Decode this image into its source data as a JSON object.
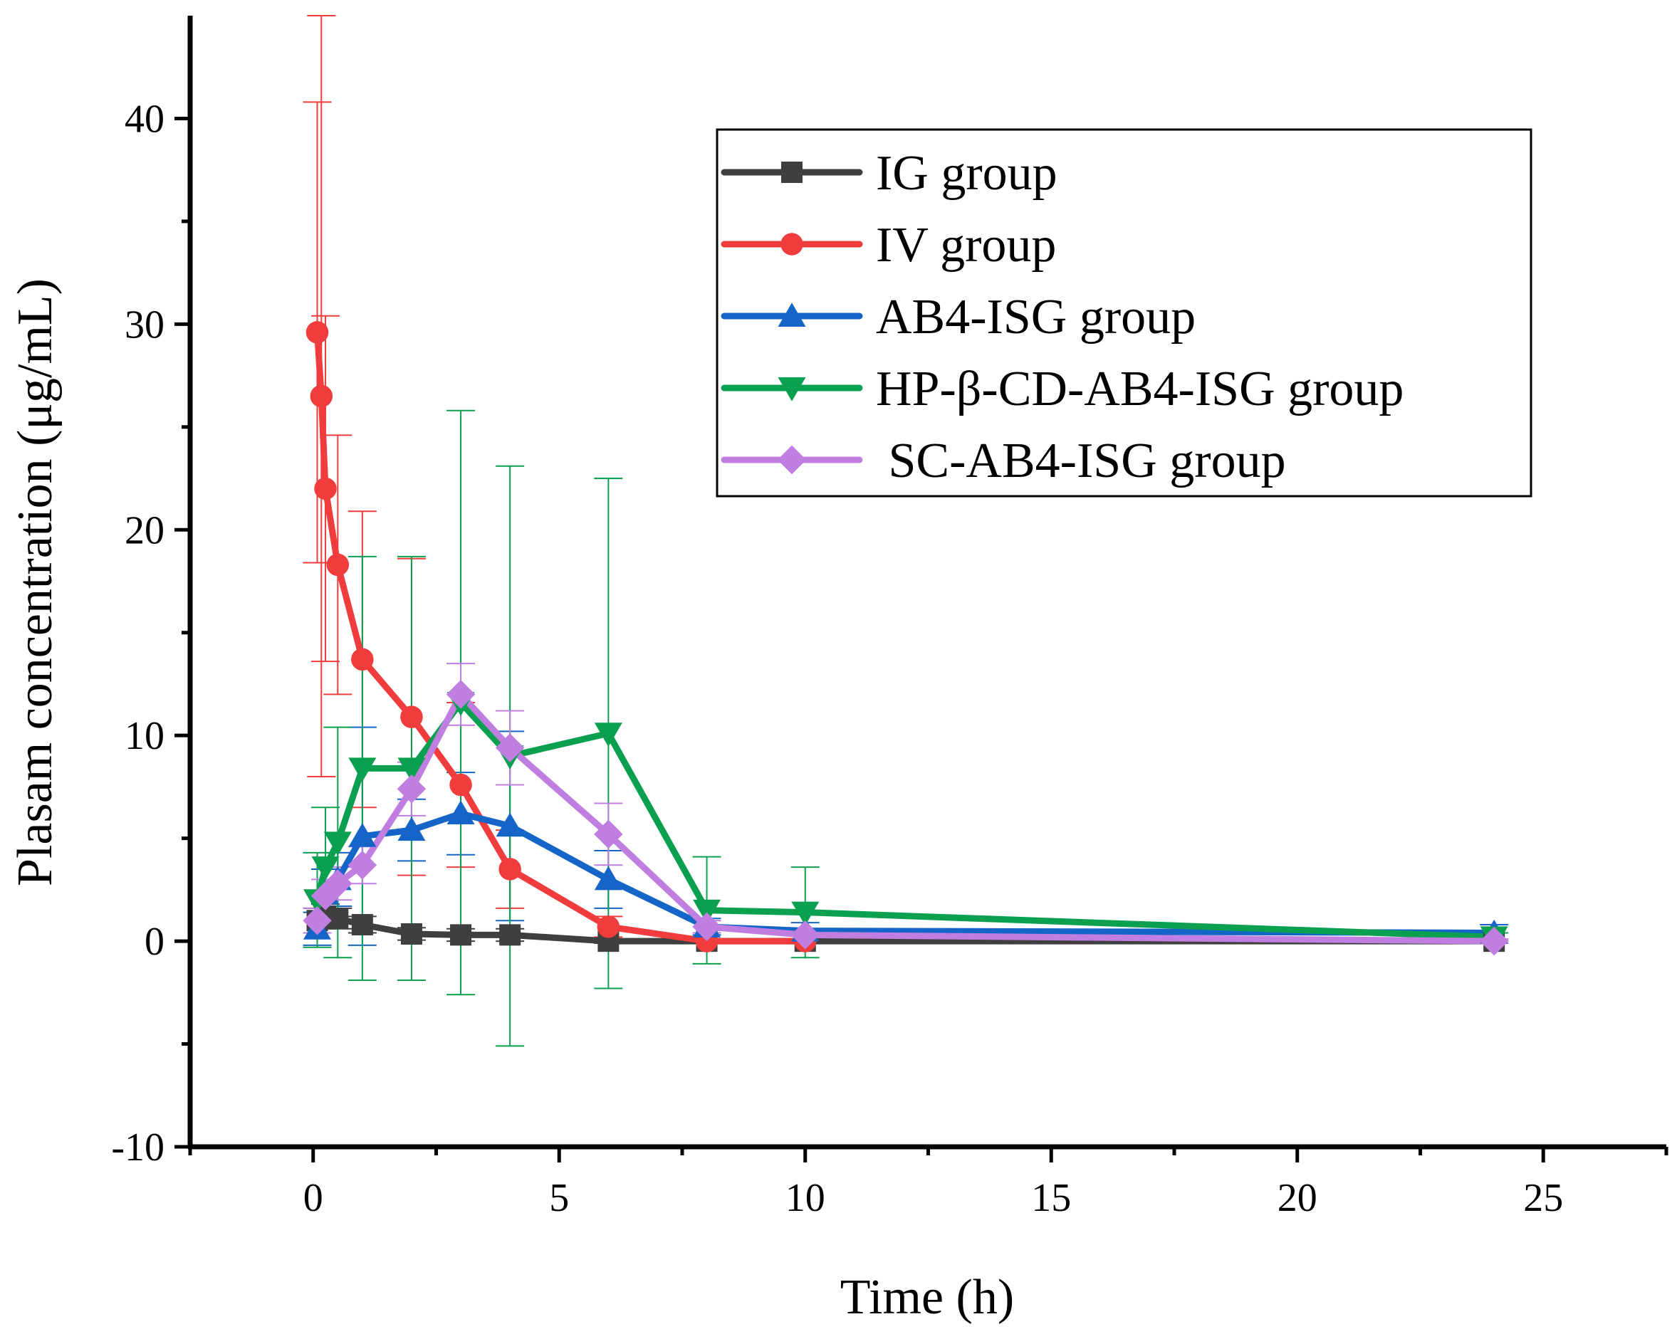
{
  "chart_data": {
    "type": "line",
    "title": "",
    "xlabel": "Time (h)",
    "ylabel": "Plasam concentration (μg/mL)",
    "xlim": [
      -2.5,
      27.5
    ],
    "ylim": [
      -10,
      45
    ],
    "x_ticks": [
      0,
      5,
      10,
      15,
      20,
      25
    ],
    "x_tick_labels": [
      "0",
      "5",
      "10",
      "15",
      "20",
      "25"
    ],
    "y_ticks": [
      -10,
      0,
      10,
      20,
      30,
      40
    ],
    "y_tick_labels": [
      "-10",
      "0",
      "10",
      "20",
      "30",
      "40"
    ],
    "grid": false,
    "legend_position": "top-right",
    "series": [
      {
        "name": "IG group",
        "color": "#3f3f3f",
        "marker": "square",
        "x": [
          0.083,
          0.25,
          0.5,
          1,
          2,
          3,
          4,
          6,
          8,
          10,
          24
        ],
        "y": [
          1.0,
          1.2,
          1.1,
          0.8,
          0.35,
          0.3,
          0.3,
          0.0,
          0.0,
          0.0,
          0.0
        ],
        "err": [
          0.6,
          0.6,
          0.5,
          0.4,
          0.3,
          0.3,
          0.3,
          0.1,
          0.1,
          0.1,
          0.1
        ]
      },
      {
        "name": "IV group",
        "color": "#f03c3c",
        "marker": "circle",
        "x": [
          0.083,
          0.167,
          0.25,
          0.5,
          1,
          2,
          3,
          4,
          6,
          8,
          10
        ],
        "y": [
          29.6,
          26.5,
          22.0,
          18.3,
          13.7,
          10.9,
          7.6,
          3.5,
          0.7,
          0.0,
          0.0
        ],
        "err": [
          11.2,
          18.5,
          8.4,
          6.3,
          7.2,
          7.7,
          4.0,
          1.9,
          0.5,
          0.1,
          0.1
        ]
      },
      {
        "name": "AB4-ISG group",
        "color": "#1565c8",
        "marker": "triangle-up",
        "x": [
          0.083,
          0.25,
          0.5,
          1,
          2,
          3,
          4,
          6,
          8,
          10,
          24
        ],
        "y": [
          0.6,
          2.3,
          3.0,
          5.1,
          5.4,
          6.2,
          5.6,
          3.0,
          0.7,
          0.5,
          0.4
        ],
        "err": [
          0.8,
          1.2,
          1.3,
          5.3,
          1.5,
          2.0,
          4.6,
          1.4,
          0.4,
          0.4,
          0.4
        ]
      },
      {
        "name": "HP-β-CD-AB4-ISG group",
        "color": "#0aa050",
        "marker": "triangle-down",
        "x": [
          0.083,
          0.25,
          0.5,
          1,
          2,
          3,
          4,
          6,
          8,
          10,
          24
        ],
        "y": [
          2.0,
          3.6,
          4.8,
          8.4,
          8.4,
          11.6,
          9.0,
          10.1,
          1.5,
          1.4,
          0.2
        ],
        "err": [
          2.3,
          2.9,
          5.6,
          10.3,
          10.3,
          14.2,
          14.1,
          12.4,
          2.6,
          2.2,
          0.2
        ]
      },
      {
        "name": " SC-AB4-ISG group",
        "color": "#c07ee0",
        "marker": "diamond",
        "x": [
          0.083,
          0.25,
          0.5,
          1,
          2,
          3,
          4,
          6,
          8,
          10,
          24
        ],
        "y": [
          1.0,
          2.2,
          2.8,
          3.7,
          7.4,
          12.0,
          9.4,
          5.2,
          0.7,
          0.3,
          0.0
        ],
        "err": [
          0.6,
          0.8,
          0.8,
          0.9,
          1.3,
          1.5,
          1.8,
          1.5,
          0.3,
          0.2,
          0.1
        ]
      }
    ]
  }
}
